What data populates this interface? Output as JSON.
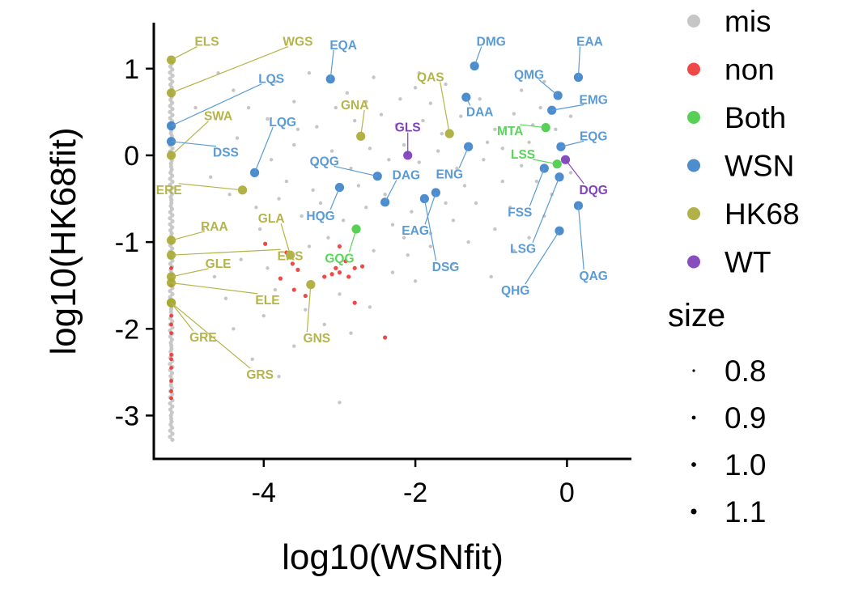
{
  "chart_data": {
    "type": "scatter",
    "title": "",
    "xlabel": "log10(WSNfit)",
    "ylabel": "log10(HK68fit)",
    "xlim": [
      -5.45,
      0.85
    ],
    "ylim": [
      -3.5,
      1.53
    ],
    "x_ticks": [
      -4,
      -2,
      0
    ],
    "x_tick_labels": [
      "-4",
      "-2",
      "0"
    ],
    "y_ticks": [
      -3,
      -2,
      -1,
      0,
      1
    ],
    "y_tick_labels": [
      "-3",
      "-2",
      "-1",
      "0",
      "1"
    ],
    "grid": false,
    "legend_position": "right",
    "color_legend": {
      "title": "",
      "entries": [
        {
          "name": "mis",
          "color": "#c0c0c0"
        },
        {
          "name": "non",
          "color": "#ee3333"
        },
        {
          "name": "Both",
          "color": "#44cc44"
        },
        {
          "name": "WSN",
          "color": "#3a7fc8"
        },
        {
          "name": "HK68",
          "color": "#a8a834"
        },
        {
          "name": "WT",
          "color": "#7a3ab8"
        }
      ]
    },
    "size_legend": {
      "title": "size",
      "entries": [
        "0.8",
        "0.9",
        "1.0",
        "1.1"
      ]
    },
    "label_colors": {
      "WSN": "#5b9bd5",
      "HK68": "#b4b44a",
      "Both": "#5ad45a",
      "WT": "#8040c0"
    },
    "series": [
      {
        "name": "WSN",
        "points": [
          {
            "x": -3.12,
            "y": 0.88,
            "label": "EQA",
            "lx": -2.95,
            "ly": 1.27
          },
          {
            "x": -1.22,
            "y": 1.03,
            "label": "DMG",
            "lx": -1.0,
            "ly": 1.31
          },
          {
            "x": 0.15,
            "y": 0.9,
            "label": "EAA",
            "lx": 0.3,
            "ly": 1.31
          },
          {
            "x": -0.12,
            "y": 0.69,
            "label": "QMG",
            "lx": -0.5,
            "ly": 0.93
          },
          {
            "x": -1.33,
            "y": 0.67,
            "label": "DAA",
            "lx": -1.15,
            "ly": 0.5
          },
          {
            "x": -0.2,
            "y": 0.52,
            "label": "EMG",
            "lx": 0.35,
            "ly": 0.64
          },
          {
            "x": -0.08,
            "y": 0.1,
            "label": "EQG",
            "lx": 0.35,
            "ly": 0.22
          },
          {
            "x": -1.3,
            "y": 0.1,
            "label": "ENG",
            "lx": -1.55,
            "ly": -0.22
          },
          {
            "x": -5.22,
            "y": 0.34,
            "label": "LQS",
            "lx": -3.9,
            "ly": 0.88
          },
          {
            "x": -5.22,
            "y": 0.16,
            "label": "DSS",
            "lx": -4.5,
            "ly": 0.03
          },
          {
            "x": -4.12,
            "y": -0.2,
            "label": "LQG",
            "lx": -3.75,
            "ly": 0.38
          },
          {
            "x": -2.5,
            "y": -0.24,
            "label": "QQG",
            "lx": -3.2,
            "ly": -0.07
          },
          {
            "x": -3.0,
            "y": -0.37,
            "label": "HQG",
            "lx": -3.25,
            "ly": -0.7
          },
          {
            "x": -2.4,
            "y": -0.54,
            "label": "DAG",
            "lx": -2.12,
            "ly": -0.23
          },
          {
            "x": -1.88,
            "y": -0.5,
            "label": "DSG",
            "lx": -1.6,
            "ly": -1.29
          },
          {
            "x": -1.73,
            "y": -0.43,
            "label": "EAG",
            "lx": -2.0,
            "ly": -0.87
          },
          {
            "x": -0.3,
            "y": -0.15,
            "label": "FSS",
            "lx": -0.62,
            "ly": -0.66
          },
          {
            "x": -0.1,
            "y": -0.25,
            "label": "LSG",
            "lx": -0.58,
            "ly": -1.08
          },
          {
            "x": -0.1,
            "y": -0.87,
            "label": "QHG",
            "lx": -0.68,
            "ly": -1.56
          },
          {
            "x": 0.15,
            "y": -0.58,
            "label": "QAG",
            "lx": 0.35,
            "ly": -1.39
          }
        ]
      },
      {
        "name": "HK68",
        "points": [
          {
            "x": -5.22,
            "y": 1.1,
            "label": "ELS",
            "lx": -4.75,
            "ly": 1.31
          },
          {
            "x": -5.22,
            "y": 0.72,
            "label": "WGS",
            "lx": -3.55,
            "ly": 1.31
          },
          {
            "x": -5.22,
            "y": 0.0,
            "label": "SWA",
            "lx": -4.6,
            "ly": 0.45
          },
          {
            "x": -4.28,
            "y": -0.4,
            "label": "ERE",
            "lx": -5.25,
            "ly": -0.4
          },
          {
            "x": -2.72,
            "y": 0.22,
            "label": "GNA",
            "lx": -2.8,
            "ly": 0.58
          },
          {
            "x": -1.55,
            "y": 0.25,
            "label": "QAS",
            "lx": -1.8,
            "ly": 0.9
          },
          {
            "x": -5.22,
            "y": -0.98,
            "label": "RAA",
            "lx": -4.65,
            "ly": -0.82
          },
          {
            "x": -3.65,
            "y": -1.15,
            "label": "GLA",
            "lx": -3.9,
            "ly": -0.73
          },
          {
            "x": -5.22,
            "y": -1.15,
            "label": "ERS",
            "lx": -3.65,
            "ly": -1.16
          },
          {
            "x": -5.22,
            "y": -1.4,
            "label": "GLE",
            "lx": -4.6,
            "ly": -1.25
          },
          {
            "x": -5.22,
            "y": -1.47,
            "label": "ELE",
            "lx": -3.95,
            "ly": -1.67
          },
          {
            "x": -5.22,
            "y": -1.7,
            "label": "GRE",
            "lx": -4.8,
            "ly": -2.1
          },
          {
            "x": -5.22,
            "y": -1.7,
            "label": "GRS",
            "lx": -4.05,
            "ly": -2.53
          },
          {
            "x": -3.38,
            "y": -1.49,
            "label": "GNS",
            "lx": -3.3,
            "ly": -2.11
          }
        ]
      },
      {
        "name": "Both",
        "points": [
          {
            "x": -0.28,
            "y": 0.32,
            "label": "MTA",
            "lx": -0.75,
            "ly": 0.28
          },
          {
            "x": -0.13,
            "y": -0.1,
            "label": "LSS",
            "lx": -0.58,
            "ly": 0.01
          },
          {
            "x": -2.78,
            "y": -0.85,
            "label": "GQG",
            "lx": -3.0,
            "ly": -1.19
          }
        ]
      },
      {
        "name": "WT",
        "points": [
          {
            "x": -2.1,
            "y": 0.0,
            "label": "GLS",
            "lx": -2.1,
            "ly": 0.32
          },
          {
            "x": -0.02,
            "y": -0.05,
            "label": "DQG",
            "lx": 0.35,
            "ly": -0.4
          }
        ]
      },
      {
        "name": "non",
        "points": [
          {
            "x": -3.98,
            "y": -1.02
          },
          {
            "x": -3.7,
            "y": -1.12
          },
          {
            "x": -3.62,
            "y": -1.25
          },
          {
            "x": -3.55,
            "y": -1.32
          },
          {
            "x": -3.78,
            "y": -1.42
          },
          {
            "x": -3.6,
            "y": -1.55
          },
          {
            "x": -3.45,
            "y": -1.62
          },
          {
            "x": -3.2,
            "y": -1.4
          },
          {
            "x": -3.1,
            "y": -1.37
          },
          {
            "x": -3.0,
            "y": -1.35
          },
          {
            "x": -2.92,
            "y": -1.22
          },
          {
            "x": -3.05,
            "y": -1.3
          },
          {
            "x": -2.88,
            "y": -1.4
          },
          {
            "x": -2.8,
            "y": -1.3
          },
          {
            "x": -2.7,
            "y": -1.28
          },
          {
            "x": -3.0,
            "y": -1.05
          },
          {
            "x": -2.8,
            "y": -1.7
          },
          {
            "x": -2.4,
            "y": -2.1
          }
        ]
      },
      {
        "name": "mis",
        "points": [
          {
            "x": -4.6,
            "y": 0.95
          },
          {
            "x": -4.2,
            "y": 0.55
          },
          {
            "x": -3.95,
            "y": 0.42
          },
          {
            "x": -3.6,
            "y": 0.62
          },
          {
            "x": -3.3,
            "y": 0.33
          },
          {
            "x": -3.05,
            "y": 0.55
          },
          {
            "x": -2.9,
            "y": 0.72
          },
          {
            "x": -2.65,
            "y": 0.62
          },
          {
            "x": -2.45,
            "y": 0.47
          },
          {
            "x": -2.2,
            "y": 0.65
          },
          {
            "x": -2.0,
            "y": 0.78
          },
          {
            "x": -1.8,
            "y": 0.6
          },
          {
            "x": -1.6,
            "y": 0.82
          },
          {
            "x": -1.4,
            "y": 0.45
          },
          {
            "x": -1.15,
            "y": 0.65
          },
          {
            "x": -0.95,
            "y": 0.3
          },
          {
            "x": -0.7,
            "y": 0.48
          },
          {
            "x": -0.5,
            "y": 0.15
          },
          {
            "x": -0.35,
            "y": 0.55
          },
          {
            "x": -0.15,
            "y": 0.3
          },
          {
            "x": 0.05,
            "y": 0.45
          },
          {
            "x": -3.9,
            "y": -0.05
          },
          {
            "x": -3.6,
            "y": 0.12
          },
          {
            "x": -3.3,
            "y": -0.1
          },
          {
            "x": -3.1,
            "y": 0.05
          },
          {
            "x": -2.85,
            "y": -0.15
          },
          {
            "x": -2.6,
            "y": 0.08
          },
          {
            "x": -2.35,
            "y": -0.05
          },
          {
            "x": -2.15,
            "y": 0.12
          },
          {
            "x": -1.95,
            "y": -0.08
          },
          {
            "x": -1.7,
            "y": 0.05
          },
          {
            "x": -1.45,
            "y": -0.15
          },
          {
            "x": -1.1,
            "y": -0.05
          },
          {
            "x": -0.85,
            "y": 0.08
          },
          {
            "x": -0.6,
            "y": -0.12
          },
          {
            "x": -0.4,
            "y": -0.3
          },
          {
            "x": -0.2,
            "y": -0.45
          },
          {
            "x": -4.45,
            "y": -0.45
          },
          {
            "x": -4.1,
            "y": -0.6
          },
          {
            "x": -3.8,
            "y": -0.5
          },
          {
            "x": -3.5,
            "y": -0.7
          },
          {
            "x": -3.25,
            "y": -0.55
          },
          {
            "x": -2.95,
            "y": -0.75
          },
          {
            "x": -2.65,
            "y": -0.6
          },
          {
            "x": -2.3,
            "y": -0.8
          },
          {
            "x": -2.05,
            "y": -0.65
          },
          {
            "x": -1.8,
            "y": -0.9
          },
          {
            "x": -1.5,
            "y": -0.75
          },
          {
            "x": -1.2,
            "y": -0.55
          },
          {
            "x": -0.95,
            "y": -0.85
          },
          {
            "x": -0.75,
            "y": -0.6
          },
          {
            "x": -0.5,
            "y": -0.95
          },
          {
            "x": -0.3,
            "y": -0.7
          },
          {
            "x": -4.3,
            "y": -1.2
          },
          {
            "x": -3.95,
            "y": -1.3
          },
          {
            "x": -3.4,
            "y": -1.05
          },
          {
            "x": -3.15,
            "y": -0.95
          },
          {
            "x": -2.55,
            "y": -1.1
          },
          {
            "x": -2.3,
            "y": -1.35
          },
          {
            "x": -2.1,
            "y": -1.15
          },
          {
            "x": -1.8,
            "y": -1.05
          },
          {
            "x": -1.5,
            "y": -1.25
          },
          {
            "x": -2.0,
            "y": -1.45
          },
          {
            "x": -4.5,
            "y": -1.65
          },
          {
            "x": -4.0,
            "y": -1.85
          },
          {
            "x": -3.45,
            "y": -1.78
          },
          {
            "x": -3.2,
            "y": -1.95
          },
          {
            "x": -2.85,
            "y": -2.05
          },
          {
            "x": -3.6,
            "y": -2.2
          },
          {
            "x": -4.15,
            "y": -2.35
          },
          {
            "x": -3.0,
            "y": -2.85
          },
          {
            "x": -1.0,
            "y": -1.4
          },
          {
            "x": 0.05,
            "y": -0.2
          },
          {
            "x": -1.65,
            "y": 0.25
          },
          {
            "x": -2.25,
            "y": 0.35
          },
          {
            "x": -2.8,
            "y": 0.4
          },
          {
            "x": -3.55,
            "y": 0.3
          },
          {
            "x": -4.35,
            "y": 0.2
          },
          {
            "x": -4.7,
            "y": -0.25
          },
          {
            "x": -4.8,
            "y": -0.85
          },
          {
            "x": -4.65,
            "y": -1.4
          },
          {
            "x": -4.9,
            "y": 0.55
          },
          {
            "x": -4.4,
            "y": 0.75
          },
          {
            "x": -3.85,
            "y": 0.85
          },
          {
            "x": -3.4,
            "y": 0.95
          },
          {
            "x": -2.55,
            "y": 0.9
          },
          {
            "x": -1.95,
            "y": 0.95
          },
          {
            "x": -0.6,
            "y": 0.75
          },
          {
            "x": -0.3,
            "y": 0.85
          },
          {
            "x": -1.35,
            "y": -0.35
          },
          {
            "x": -2.75,
            "y": -0.35
          },
          {
            "x": -3.7,
            "y": -0.3
          },
          {
            "x": -1.05,
            "y": 0.15
          },
          {
            "x": -0.45,
            "y": 0.35
          },
          {
            "x": -1.9,
            "y": 0.4
          },
          {
            "x": -2.4,
            "y": -0.45
          },
          {
            "x": -1.6,
            "y": -0.55
          },
          {
            "x": -0.85,
            "y": -0.3
          },
          {
            "x": -3.35,
            "y": -0.4
          },
          {
            "x": -4.05,
            "y": -0.85
          },
          {
            "x": -2.15,
            "y": -0.95
          },
          {
            "x": -1.3,
            "y": -1.0
          },
          {
            "x": -0.7,
            "y": -1.1
          },
          {
            "x": -3.85,
            "y": -1.55
          },
          {
            "x": -3.0,
            "y": -1.6
          },
          {
            "x": -2.6,
            "y": -1.75
          },
          {
            "x": -4.4,
            "y": -2.0
          },
          {
            "x": -3.8,
            "y": -2.55
          }
        ]
      }
    ]
  }
}
